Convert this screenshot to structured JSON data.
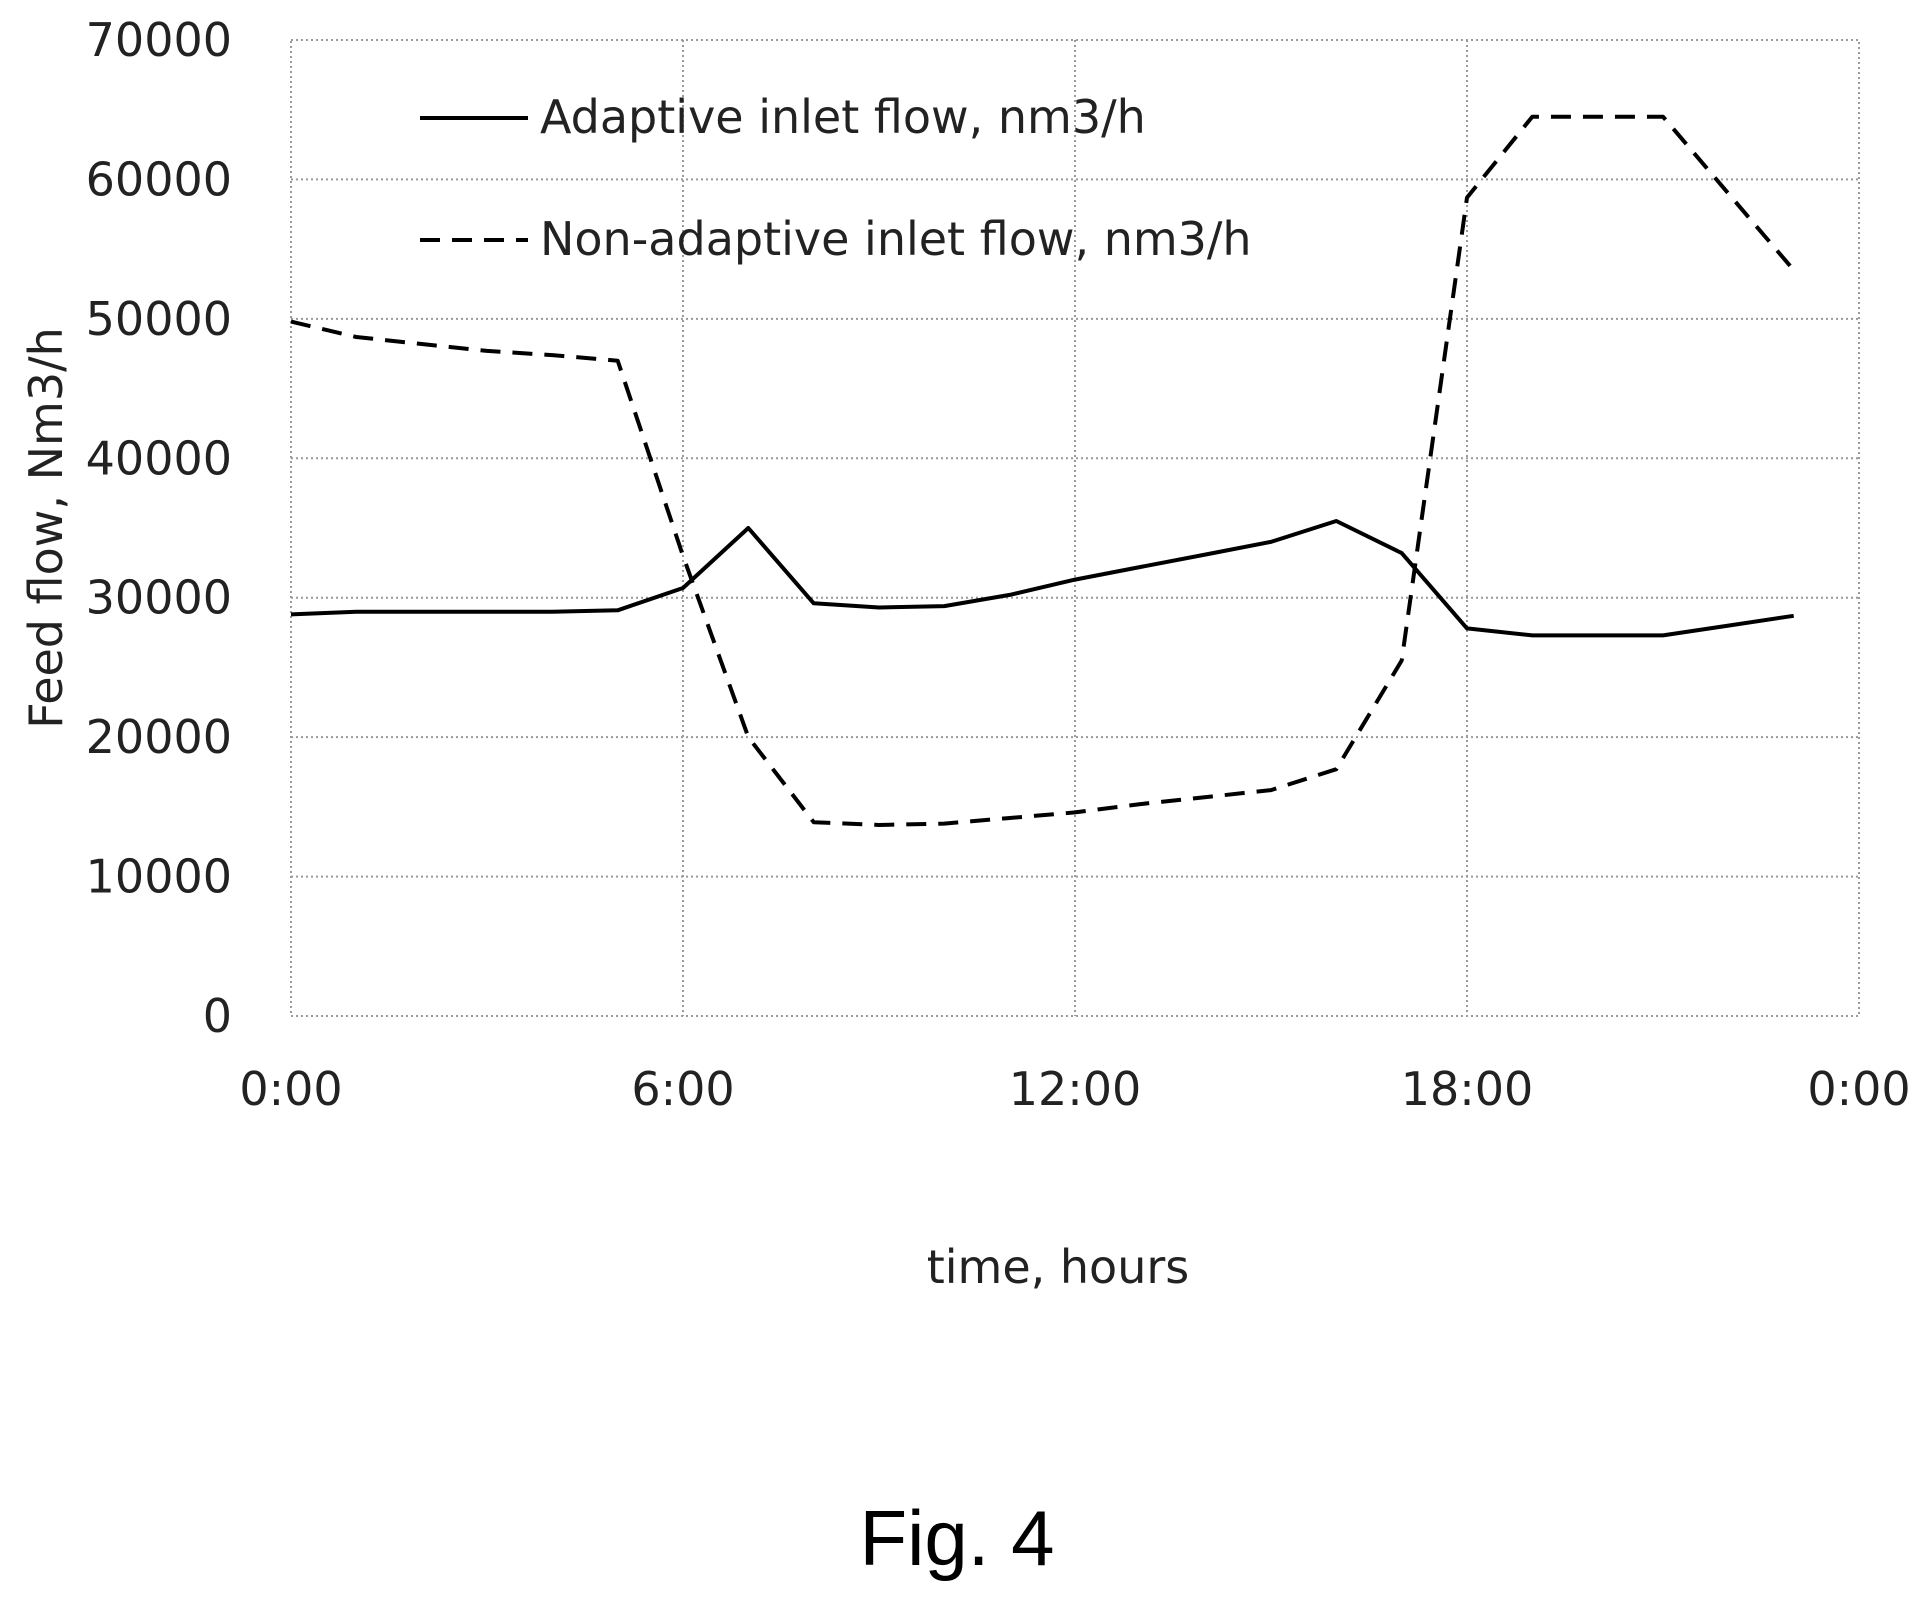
{
  "figure": {
    "caption": "Fig. 4"
  },
  "chart_data": {
    "type": "line",
    "xlabel": "time, hours",
    "ylabel": "Feed flow, Nm3/h",
    "ylim": [
      0,
      70000
    ],
    "xlim_hours": [
      0,
      24
    ],
    "y_ticks": [
      "0",
      "10000",
      "20000",
      "30000",
      "40000",
      "50000",
      "60000",
      "70000"
    ],
    "x_ticks": [
      "0:00",
      "6:00",
      "12:00",
      "18:00",
      "0:00"
    ],
    "grid": true,
    "legend_position": "top-left",
    "series": [
      {
        "name": "Adaptive inlet flow, nm3/h",
        "style": "solid",
        "color": "#000000",
        "x": [
          "0:00",
          "1:00",
          "2:00",
          "3:00",
          "4:00",
          "5:00",
          "6:00",
          "7:00",
          "8:00",
          "9:00",
          "10:00",
          "11:00",
          "12:00",
          "13:00",
          "14:00",
          "15:00",
          "16:00",
          "17:00",
          "18:00",
          "19:00",
          "20:00",
          "21:00",
          "22:00",
          "23:00"
        ],
        "y": [
          28800,
          29000,
          29000,
          29000,
          29000,
          29100,
          30700,
          35000,
          29600,
          29300,
          29400,
          30200,
          31300,
          32200,
          33100,
          34000,
          35500,
          33200,
          27800,
          27300,
          27300,
          27300,
          28000,
          28700
        ]
      },
      {
        "name": "Non-adaptive inlet flow, nm3/h",
        "style": "dashed",
        "color": "#000000",
        "x": [
          "0:00",
          "1:00",
          "2:00",
          "3:00",
          "4:00",
          "5:00",
          "6:00",
          "7:00",
          "8:00",
          "9:00",
          "10:00",
          "11:00",
          "12:00",
          "13:00",
          "14:00",
          "15:00",
          "16:00",
          "17:00",
          "18:00",
          "19:00",
          "20:00",
          "21:00",
          "22:00",
          "23:00"
        ],
        "y": [
          49800,
          48700,
          48200,
          47700,
          47400,
          47000,
          33000,
          20000,
          13900,
          13700,
          13800,
          14200,
          14600,
          15200,
          15700,
          16200,
          17700,
          25500,
          58700,
          64500,
          64500,
          64500,
          59000,
          53500
        ]
      }
    ]
  }
}
